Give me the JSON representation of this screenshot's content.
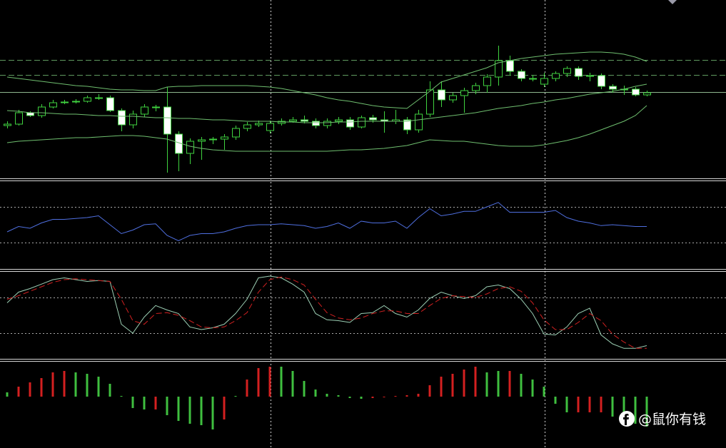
{
  "chart_data": [
    {
      "type": "candlestick",
      "ylim": [
        0,
        250
      ],
      "up_color": "#3fd23f",
      "down_color": "#ffffff",
      "open": [
        74,
        76,
        92,
        88,
        100,
        106,
        107,
        108,
        113,
        113,
        95,
        75,
        90,
        100,
        100,
        62,
        35,
        52,
        54,
        55,
        58,
        70,
        75,
        67,
        77,
        80,
        82,
        80,
        74,
        80,
        82,
        72,
        85,
        82,
        80,
        82,
        68,
        90,
        124,
        110,
        116,
        123,
        130,
        142,
        165,
        150,
        140,
        132,
        140,
        147,
        154,
        143,
        144,
        129,
        125,
        125,
        117
      ],
      "high": [
        80,
        96,
        94,
        104,
        110,
        110,
        111,
        116,
        118,
        116,
        98,
        95,
        104,
        103,
        128,
        66,
        56,
        58,
        58,
        62,
        74,
        79,
        81,
        81,
        84,
        86,
        88,
        84,
        84,
        86,
        86,
        88,
        89,
        94,
        96,
        86,
        96,
        136,
        136,
        120,
        127,
        134,
        146,
        186,
        172,
        153,
        145,
        148,
        150,
        157,
        157,
        148,
        147,
        132,
        130,
        128,
        123
      ],
      "low": [
        70,
        74,
        86,
        85,
        98,
        104,
        105,
        106,
        110,
        93,
        66,
        70,
        86,
        94,
        8,
        10,
        20,
        26,
        48,
        40,
        54,
        66,
        72,
        63,
        74,
        78,
        77,
        70,
        70,
        76,
        68,
        70,
        78,
        64,
        76,
        62,
        64,
        86,
        100,
        106,
        92,
        118,
        120,
        130,
        144,
        136,
        136,
        128,
        136,
        142,
        138,
        136,
        125,
        120,
        117,
        115,
        115
      ],
      "close": [
        76,
        92,
        88,
        100,
        106,
        107,
        108,
        113,
        113,
        95,
        75,
        90,
        100,
        100,
        62,
        35,
        52,
        54,
        55,
        58,
        70,
        75,
        77,
        77,
        80,
        82,
        80,
        74,
        80,
        82,
        72,
        85,
        82,
        80,
        82,
        68,
        90,
        124,
        110,
        116,
        123,
        130,
        142,
        165,
        150,
        140,
        140,
        140,
        147,
        154,
        143,
        144,
        129,
        125,
        125,
        117,
        120
      ],
      "overlays": [
        {
          "color": "#6fbf6f",
          "values": [
            142,
            140,
            138,
            136,
            134,
            132,
            130,
            129,
            127,
            125,
            124,
            124,
            123,
            123,
            128,
            129,
            129,
            130,
            130,
            130,
            130,
            130,
            129,
            128,
            126,
            123,
            120,
            117,
            113,
            110,
            108,
            105,
            102,
            100,
            99,
            98,
            110,
            122,
            135,
            140,
            145,
            150,
            155,
            162,
            165,
            168,
            170,
            172,
            174,
            175,
            176,
            177,
            177,
            176,
            174,
            170,
            164
          ]
        },
        {
          "color": "#6fbf6f",
          "values": [
            95,
            94,
            92,
            92,
            91,
            90,
            90,
            89,
            88,
            88,
            87,
            87,
            86,
            85,
            85,
            84,
            84,
            83,
            82,
            82,
            81,
            80,
            80,
            80,
            79,
            79,
            78,
            78,
            78,
            79,
            79,
            80,
            80,
            80,
            80,
            80,
            82,
            84,
            86,
            88,
            90,
            92,
            95,
            98,
            100,
            102,
            105,
            107,
            110,
            112,
            115,
            118,
            120,
            122,
            125,
            129,
            132
          ]
        },
        {
          "color": "#6fbf6f",
          "values": [
            50,
            52,
            53,
            54,
            55,
            56,
            57,
            57,
            58,
            59,
            60,
            60,
            59,
            57,
            55,
            50,
            45,
            42,
            40,
            39,
            38,
            38,
            38,
            38,
            38,
            38,
            38,
            38,
            38,
            39,
            40,
            40,
            41,
            42,
            44,
            46,
            50,
            54,
            53,
            52,
            52,
            50,
            48,
            46,
            45,
            45,
            45,
            47,
            50,
            53,
            57,
            62,
            68,
            74,
            80,
            88,
            102
          ]
        }
      ],
      "levels": [
        {
          "value": 166,
          "style": "dashed",
          "color": "#5f9a5f"
        },
        {
          "value": 145,
          "style": "dashed",
          "color": "#5f9a5f"
        },
        {
          "value": 121,
          "style": "solid",
          "color": "#8fb88f"
        }
      ]
    },
    {
      "type": "line",
      "ylim": [
        0,
        100
      ],
      "series": [
        {
          "color": "#4f6fe0",
          "style": "solid",
          "values": [
            42,
            48,
            46,
            52,
            56,
            56,
            57,
            58,
            60,
            50,
            40,
            44,
            50,
            51,
            38,
            32,
            38,
            40,
            40,
            42,
            46,
            49,
            50,
            50,
            51,
            50,
            49,
            46,
            48,
            52,
            46,
            54,
            52,
            52,
            54,
            46,
            58,
            68,
            60,
            62,
            65,
            65,
            70,
            75,
            64,
            64,
            64,
            64,
            66,
            58,
            54,
            52,
            49,
            50,
            49,
            48,
            48
          ]
        }
      ],
      "levels": [
        {
          "value": 70,
          "style": "dotted",
          "color": "#aaaaaa"
        },
        {
          "value": 30,
          "style": "dotted",
          "color": "#aaaaaa"
        }
      ]
    },
    {
      "type": "line",
      "ylim": [
        0,
        100
      ],
      "series": [
        {
          "color": "#9ccfb4",
          "style": "solid",
          "values": [
            64,
            76,
            80,
            85,
            90,
            92,
            90,
            88,
            89,
            88,
            40,
            30,
            48,
            61,
            56,
            52,
            37,
            34,
            36,
            40,
            52,
            68,
            92,
            94,
            92,
            85,
            76,
            52,
            45,
            44,
            42,
            52,
            53,
            61,
            52,
            48,
            56,
            69,
            76,
            72,
            69,
            72,
            82,
            84,
            80,
            68,
            52,
            29,
            28,
            37,
            52,
            58,
            28,
            18,
            13,
            13,
            16
          ]
        },
        {
          "color": "#d02020",
          "style": "dashed",
          "values": [
            68,
            72,
            77,
            82,
            87,
            90,
            91,
            90,
            89,
            88,
            68,
            44,
            40,
            52,
            53,
            50,
            44,
            37,
            36,
            37,
            44,
            53,
            76,
            90,
            93,
            90,
            84,
            68,
            53,
            47,
            45,
            47,
            52,
            55,
            55,
            52,
            52,
            61,
            69,
            72,
            71,
            70,
            74,
            80,
            82,
            77,
            64,
            45,
            34,
            34,
            42,
            52,
            44,
            29,
            20,
            13,
            13
          ]
        }
      ],
      "levels": [
        {
          "value": 70,
          "style": "dotted",
          "color": "#aaaaaa"
        },
        {
          "value": 30,
          "style": "dotted",
          "color": "#aaaaaa"
        }
      ]
    },
    {
      "type": "bar",
      "ylim": [
        -70,
        50
      ],
      "values": [
        6,
        14,
        20,
        26,
        34,
        36,
        34,
        32,
        28,
        18,
        1,
        -16,
        -18,
        -18,
        -26,
        -34,
        -38,
        -40,
        -46,
        -32,
        1,
        24,
        40,
        42,
        42,
        36,
        22,
        10,
        4,
        2,
        -2,
        -3,
        -2,
        -1,
        1,
        2,
        4,
        16,
        28,
        32,
        38,
        42,
        34,
        36,
        36,
        32,
        24,
        14,
        -10,
        -22,
        -22,
        -22,
        -22,
        -28,
        -34,
        -38,
        -42
      ],
      "colors": [
        "#3fbf3f",
        "#d42020",
        "#d42020",
        "#d42020",
        "#d42020",
        "#d42020",
        "#3fbf3f",
        "#3fbf3f",
        "#3fbf3f",
        "#3fbf3f",
        "#3fbf3f",
        "#3fbf3f",
        "#3fbf3f",
        "#d42020",
        "#3fbf3f",
        "#3fbf3f",
        "#3fbf3f",
        "#3fbf3f",
        "#3fbf3f",
        "#d42020",
        "#3fbf3f",
        "#d42020",
        "#d42020",
        "#d42020",
        "#3fbf3f",
        "#3fbf3f",
        "#3fbf3f",
        "#3fbf3f",
        "#3fbf3f",
        "#3fbf3f",
        "#3fbf3f",
        "#3fbf3f",
        "#d42020",
        "#d42020",
        "#d42020",
        "#d42020",
        "#d42020",
        "#d42020",
        "#d42020",
        "#d42020",
        "#d42020",
        "#d42020",
        "#3fbf3f",
        "#3fbf3f",
        "#d42020",
        "#3fbf3f",
        "#3fbf3f",
        "#3fbf3f",
        "#3fbf3f",
        "#3fbf3f",
        "#d42020",
        "#d42020",
        "#d42020",
        "#3fbf3f",
        "#3fbf3f",
        "#3fbf3f",
        "#3fbf3f"
      ]
    }
  ],
  "watermark": "@鼠你有钱"
}
